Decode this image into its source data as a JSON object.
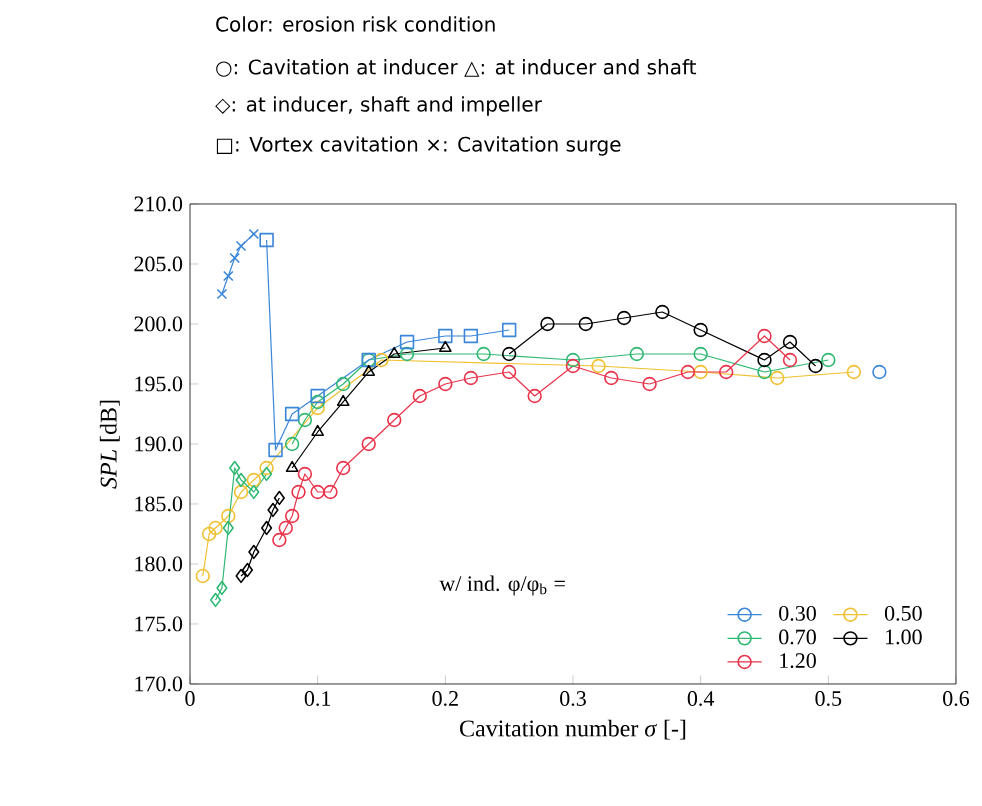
{
  "chart_data": {
    "type": "line",
    "xlabel": "Cavitation number *σ* [-]",
    "ylabel": "*SPL* [dB]",
    "legend_title": "w/ ind.  φ/φ$_{b}$ =",
    "legend": "bottom right",
    "line_style": "solid",
    "grid": false,
    "annotations": [
      "Color: erosion risk condition",
      "○: Cavitation at inducer △: at inducer and shaft",
      "◇: at inducer, shaft and impeller",
      "□: Vortex cavitation ×: Cavitation surge"
    ],
    "xlim": [
      0,
      0.6
    ],
    "xticks": [
      0,
      0.1,
      0.2,
      0.3,
      0.4,
      0.5,
      0.6
    ],
    "ylim": [
      170,
      210
    ],
    "yticks": [
      {
        "value": 170,
        "label": "170.0"
      },
      {
        "value": 175,
        "label": "175.0"
      },
      {
        "value": 180,
        "label": "180.0"
      },
      {
        "value": 185,
        "label": "185.0"
      },
      {
        "value": 190,
        "label": "190.0"
      },
      {
        "value": 195,
        "label": "195.0"
      },
      {
        "value": 200,
        "label": "200.0"
      },
      {
        "value": 205,
        "label": "205.0"
      },
      {
        "value": 210,
        "label": "210.0"
      }
    ],
    "series": [
      {
        "name": "0.30",
        "color": "#3a86d8",
        "marker": "circle",
        "x": [
          0.54
        ],
        "values": [
          196
        ]
      },
      {
        "name": "0.50",
        "color": "#f0c030",
        "marker": "circle",
        "x": [
          0.01,
          0.015,
          0.02,
          0.03,
          0.04,
          0.05,
          0.06,
          0.1,
          0.15,
          0.32,
          0.4,
          0.46,
          0.52
        ],
        "values": [
          179,
          182.5,
          183,
          184,
          186,
          187,
          188,
          193,
          197,
          196.5,
          196,
          195.5,
          196
        ]
      },
      {
        "name": "0.70",
        "color": "#2fb872",
        "marker": "circle",
        "x": [
          0.08,
          0.09,
          0.1,
          0.12,
          0.14,
          0.17,
          0.23,
          0.3,
          0.35,
          0.4,
          0.45,
          0.5
        ],
        "values": [
          190,
          192,
          193.5,
          195,
          197,
          197.5,
          197.5,
          197,
          197.5,
          197.5,
          196,
          197
        ]
      },
      {
        "name": "1.00",
        "color": "#000000",
        "marker": "circle",
        "x": [
          0.25,
          0.28,
          0.31,
          0.34,
          0.37,
          0.4,
          0.45,
          0.47,
          0.49
        ],
        "values": [
          197.5,
          200,
          200,
          200.5,
          201,
          199.5,
          197,
          198.5,
          196.5
        ]
      },
      {
        "name": "1.20",
        "color": "#e8334a",
        "marker": "circle",
        "x": [
          0.07,
          0.075,
          0.08,
          0.085,
          0.09,
          0.1,
          0.11,
          0.12,
          0.14,
          0.16,
          0.18,
          0.2,
          0.22,
          0.25,
          0.27,
          0.3,
          0.33,
          0.36,
          0.39,
          0.42,
          0.45,
          0.47
        ],
        "values": [
          182,
          183,
          184,
          186,
          187.5,
          186,
          186,
          188,
          190,
          192,
          194,
          195,
          195.5,
          196,
          194,
          196.5,
          195.5,
          195,
          196,
          196,
          199,
          197
        ]
      },
      {
        "color": "#3a86d8",
        "marker": "cross",
        "x": [
          0.025,
          0.03,
          0.035,
          0.04,
          0.05
        ],
        "values": [
          202.5,
          204,
          205.5,
          206.5,
          207.5
        ]
      },
      {
        "color": "#3a86d8",
        "marker": "square",
        "x": [
          0.06,
          0.067,
          0.08,
          0.1,
          0.14,
          0.17,
          0.2,
          0.22,
          0.25
        ],
        "values": [
          207,
          189.5,
          192.5,
          194,
          197,
          198.5,
          199,
          199,
          199.5
        ]
      },
      {
        "color": "#2fb872",
        "marker": "diamond",
        "x": [
          0.02,
          0.025,
          0.03,
          0.035,
          0.04,
          0.05,
          0.06
        ],
        "values": [
          177,
          178,
          183,
          188,
          187,
          186,
          187.5
        ]
      },
      {
        "color": "#000000",
        "marker": "diamond",
        "x": [
          0.04,
          0.045,
          0.05,
          0.06,
          0.065,
          0.07
        ],
        "values": [
          179,
          179.5,
          181,
          183,
          184.5,
          185.5
        ]
      },
      {
        "color": "#000000",
        "marker": "triangle",
        "x": [
          0.08,
          0.1,
          0.12,
          0.14,
          0.16,
          0.2
        ],
        "values": [
          188,
          191,
          193.5,
          196,
          197.5,
          198
        ]
      }
    ]
  }
}
